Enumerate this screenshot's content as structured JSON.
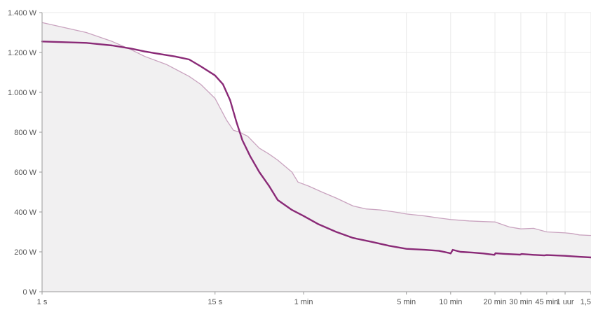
{
  "chart_data": {
    "type": "line",
    "x_scale": "log",
    "y_unit": "W",
    "grid": true,
    "y_ticks": [
      {
        "value": 0,
        "label": "0 W"
      },
      {
        "value": 200,
        "label": "200 W"
      },
      {
        "value": 400,
        "label": "400 W"
      },
      {
        "value": 600,
        "label": "600 W"
      },
      {
        "value": 800,
        "label": "800 W"
      },
      {
        "value": 1000,
        "label": "1.000 W"
      },
      {
        "value": 1200,
        "label": "1.200 W"
      },
      {
        "value": 1400,
        "label": "1.400 W"
      }
    ],
    "x_ticks": [
      {
        "value": 1,
        "label": "1 s"
      },
      {
        "value": 15,
        "label": "15 s"
      },
      {
        "value": 60,
        "label": "1 min"
      },
      {
        "value": 300,
        "label": "5 min"
      },
      {
        "value": 600,
        "label": "10 min"
      },
      {
        "value": 1200,
        "label": "20 min"
      },
      {
        "value": 1800,
        "label": "30 min"
      },
      {
        "value": 2700,
        "label": "45 min"
      },
      {
        "value": 3600,
        "label": "1 uur"
      },
      {
        "value": 5400,
        "label": "1,5"
      }
    ],
    "xlim": [
      1,
      5400
    ],
    "ylim": [
      0,
      1400
    ],
    "colors": {
      "primary_line": "#8a2a77",
      "reference_line": "#c9a3bf",
      "reference_fill": "#f1f0f1",
      "grid": "#e9e9e9",
      "axis": "#9a9a9a",
      "tick_text": "#555555"
    },
    "series": [
      {
        "role": "reference",
        "style": "area",
        "points": [
          [
            1,
            1350
          ],
          [
            2,
            1300
          ],
          [
            3,
            1255
          ],
          [
            4,
            1215
          ],
          [
            5,
            1180
          ],
          [
            7,
            1140
          ],
          [
            10,
            1080
          ],
          [
            12,
            1040
          ],
          [
            15,
            970
          ],
          [
            18,
            860
          ],
          [
            20,
            810
          ],
          [
            22,
            800
          ],
          [
            25,
            780
          ],
          [
            30,
            720
          ],
          [
            35,
            690
          ],
          [
            40,
            660
          ],
          [
            50,
            600
          ],
          [
            55,
            550
          ],
          [
            65,
            530
          ],
          [
            80,
            500
          ],
          [
            100,
            470
          ],
          [
            130,
            430
          ],
          [
            160,
            415
          ],
          [
            200,
            410
          ],
          [
            250,
            400
          ],
          [
            300,
            390
          ],
          [
            400,
            380
          ],
          [
            500,
            370
          ],
          [
            600,
            362
          ],
          [
            800,
            355
          ],
          [
            1000,
            352
          ],
          [
            1200,
            350
          ],
          [
            1500,
            325
          ],
          [
            1800,
            315
          ],
          [
            2200,
            318
          ],
          [
            2700,
            300
          ],
          [
            3600,
            295
          ],
          [
            4000,
            292
          ],
          [
            4500,
            285
          ],
          [
            5400,
            282
          ]
        ]
      },
      {
        "role": "primary",
        "style": "line",
        "points": [
          [
            1,
            1255
          ],
          [
            2,
            1248
          ],
          [
            3,
            1235
          ],
          [
            4,
            1220
          ],
          [
            5,
            1205
          ],
          [
            6,
            1195
          ],
          [
            8,
            1180
          ],
          [
            10,
            1165
          ],
          [
            12,
            1130
          ],
          [
            15,
            1085
          ],
          [
            17,
            1040
          ],
          [
            19,
            960
          ],
          [
            21,
            850
          ],
          [
            23,
            760
          ],
          [
            26,
            680
          ],
          [
            30,
            600
          ],
          [
            35,
            530
          ],
          [
            40,
            460
          ],
          [
            50,
            410
          ],
          [
            60,
            380
          ],
          [
            75,
            340
          ],
          [
            100,
            300
          ],
          [
            130,
            270
          ],
          [
            175,
            250
          ],
          [
            230,
            230
          ],
          [
            300,
            215
          ],
          [
            400,
            210
          ],
          [
            500,
            205
          ],
          [
            580,
            195
          ],
          [
            600,
            192
          ],
          [
            620,
            210
          ],
          [
            700,
            200
          ],
          [
            850,
            196
          ],
          [
            1000,
            192
          ],
          [
            1190,
            185
          ],
          [
            1210,
            193
          ],
          [
            1400,
            190
          ],
          [
            1780,
            186
          ],
          [
            1820,
            189
          ],
          [
            2200,
            185
          ],
          [
            2600,
            182
          ],
          [
            2700,
            184
          ],
          [
            3600,
            180
          ],
          [
            4500,
            175
          ],
          [
            5400,
            172
          ]
        ]
      }
    ]
  }
}
